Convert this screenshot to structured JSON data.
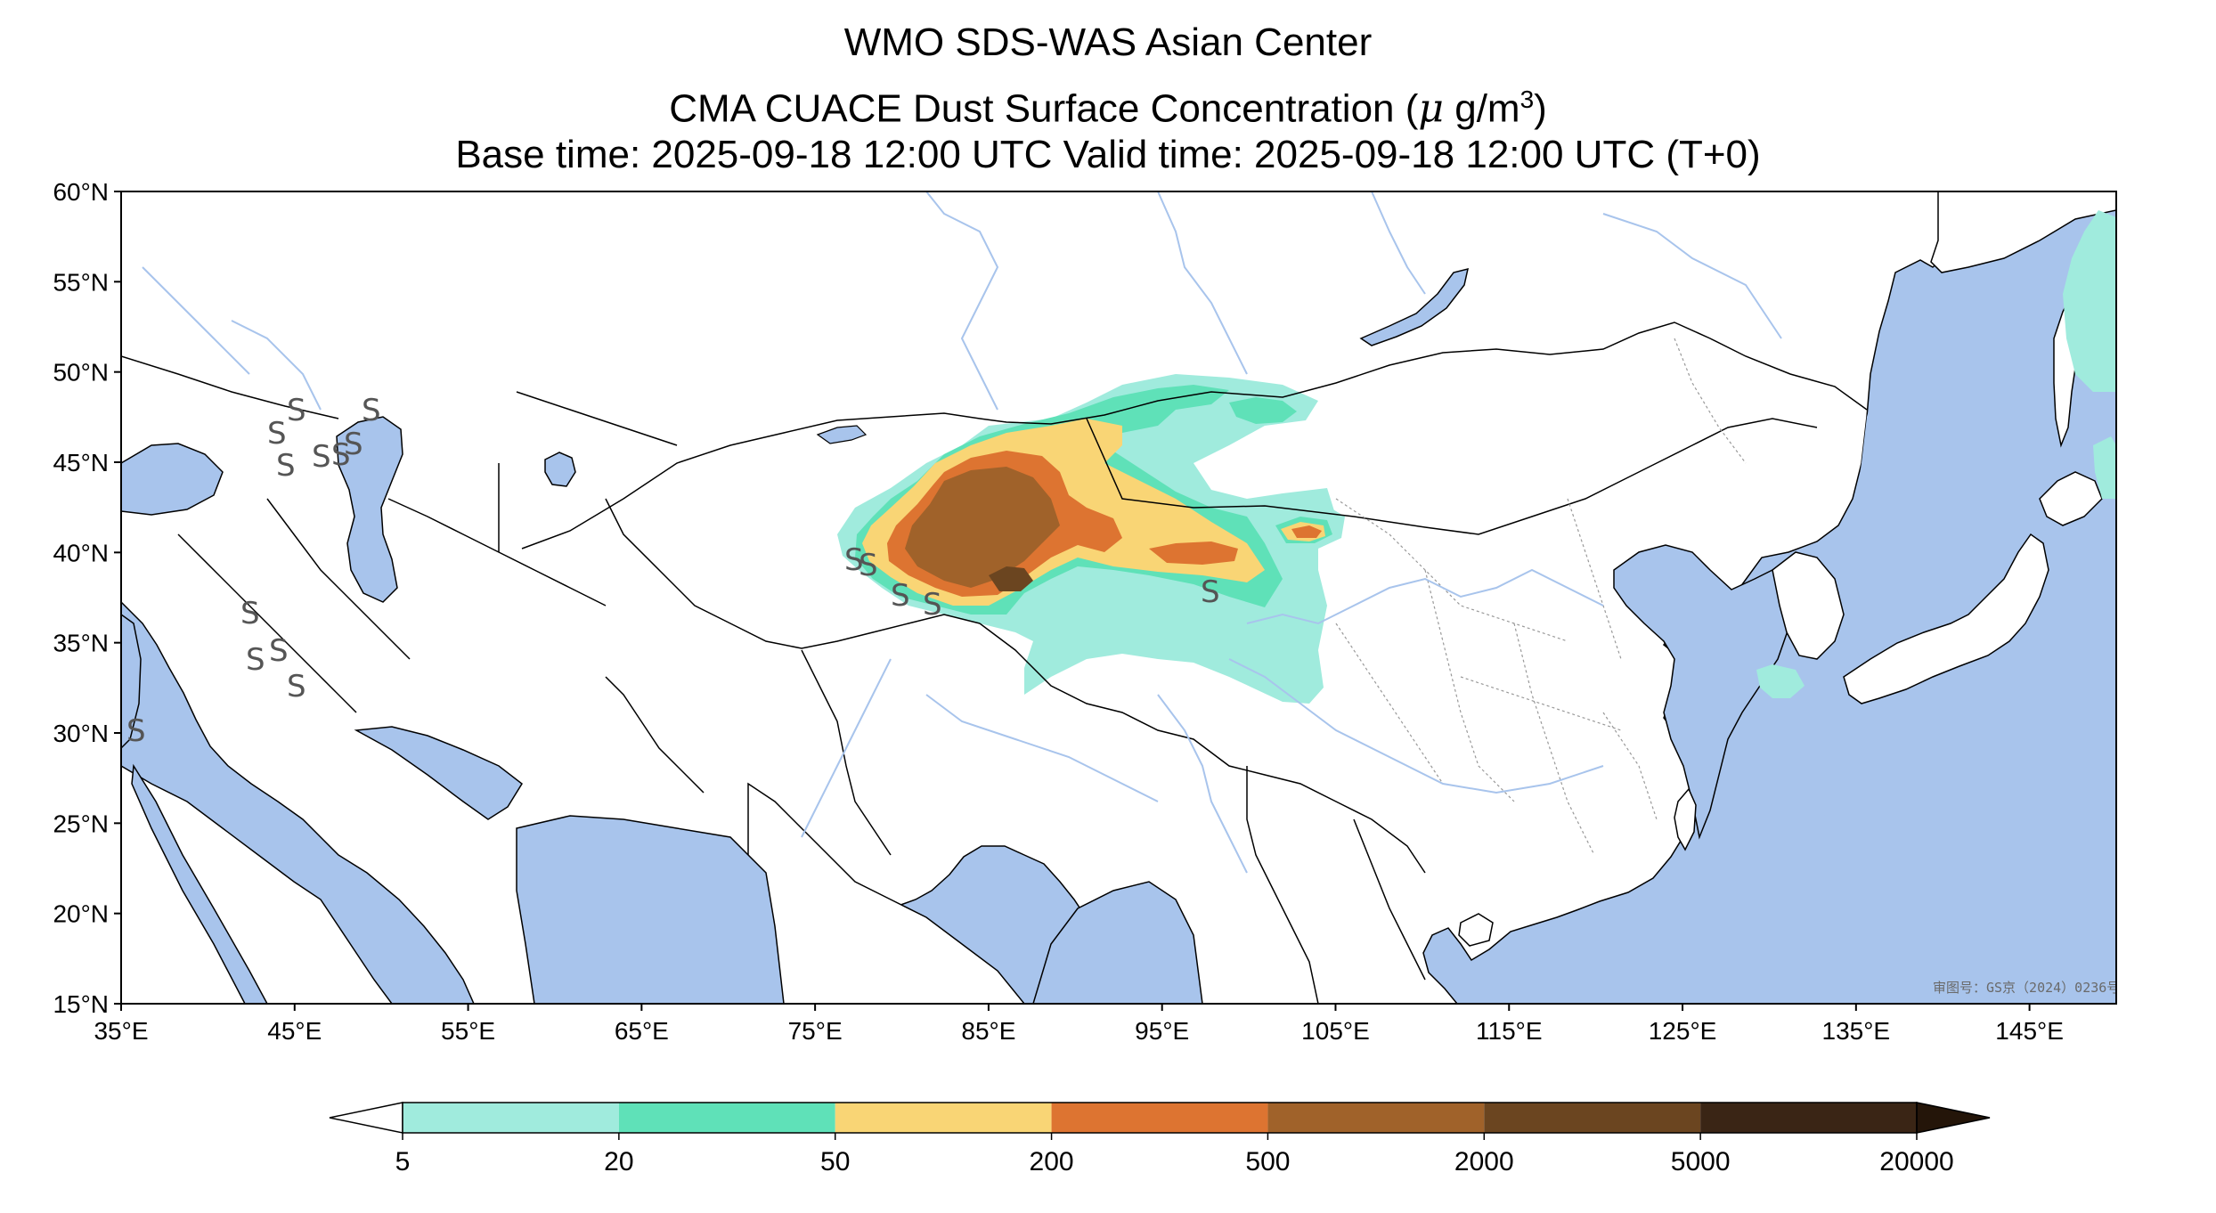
{
  "title": {
    "line1": "WMO SDS-WAS Asian Center",
    "line2_prefix": "CMA CUACE Dust Surface Concentration (",
    "line2_mu": "μ",
    "line2_unit": " g/m",
    "line2_sup": "3",
    "line2_suffix": ")",
    "line3": "Base time: 2025-09-18 12:00 UTC Valid time: 2025-09-18 12:00 UTC (T+0)"
  },
  "map": {
    "lon_range": [
      35,
      150
    ],
    "lat_range": [
      15,
      60
    ],
    "ocean_color": "#a8c4ec",
    "land_color": "#ffffff",
    "lat_ticks": [
      "60°N",
      "55°N",
      "50°N",
      "45°N",
      "40°N",
      "35°N",
      "30°N",
      "25°N",
      "20°N",
      "15°N"
    ],
    "lon_ticks": [
      "35°E",
      "45°E",
      "55°E",
      "65°E",
      "75°E",
      "85°E",
      "95°E",
      "105°E",
      "115°E",
      "125°E",
      "135°E",
      "145°E"
    ],
    "credit": "审图号：GS京（2024）0236号",
    "source_marker_symbol": "S"
  },
  "colorbar": {
    "labels": [
      "5",
      "20",
      "50",
      "200",
      "500",
      "2000",
      "5000",
      "20000"
    ],
    "colors": [
      "#a0ebdd",
      "#5fe1b8",
      "#f9d575",
      "#dd7431",
      "#a0622a",
      "#6b4520",
      "#3a2515"
    ],
    "under_color": "#ffffff",
    "over_color": "#241509"
  }
}
